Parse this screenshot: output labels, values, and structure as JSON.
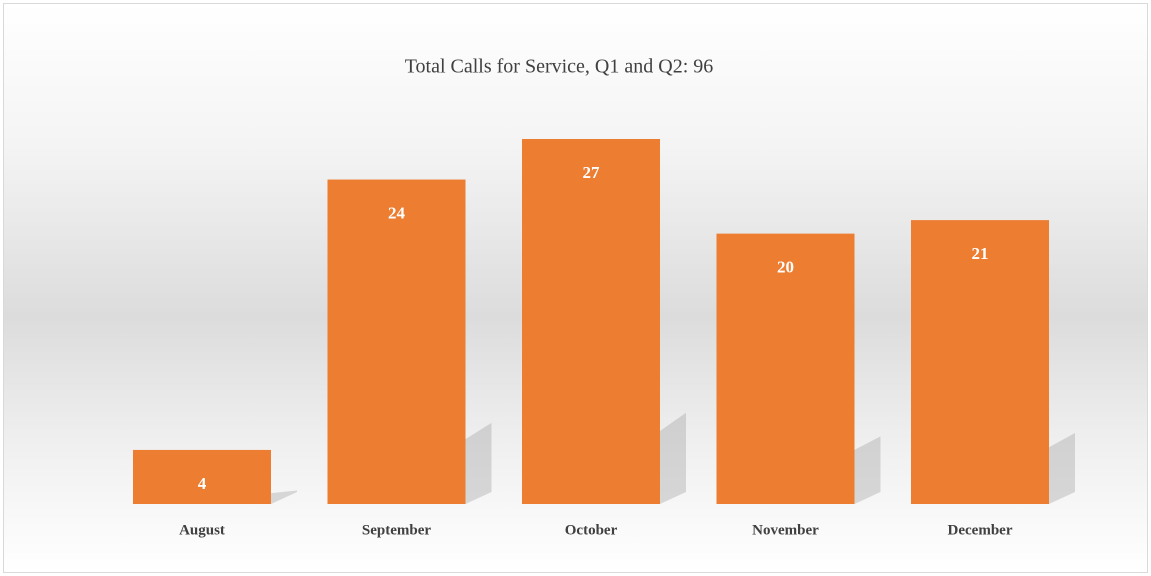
{
  "chart_data": {
    "type": "bar",
    "title": "Total Calls for Service, Q1 and Q2: 96",
    "categories": [
      "August",
      "September",
      "October",
      "November",
      "December"
    ],
    "values": [
      4,
      24,
      27,
      20,
      21
    ],
    "color": "#ed7d31"
  }
}
